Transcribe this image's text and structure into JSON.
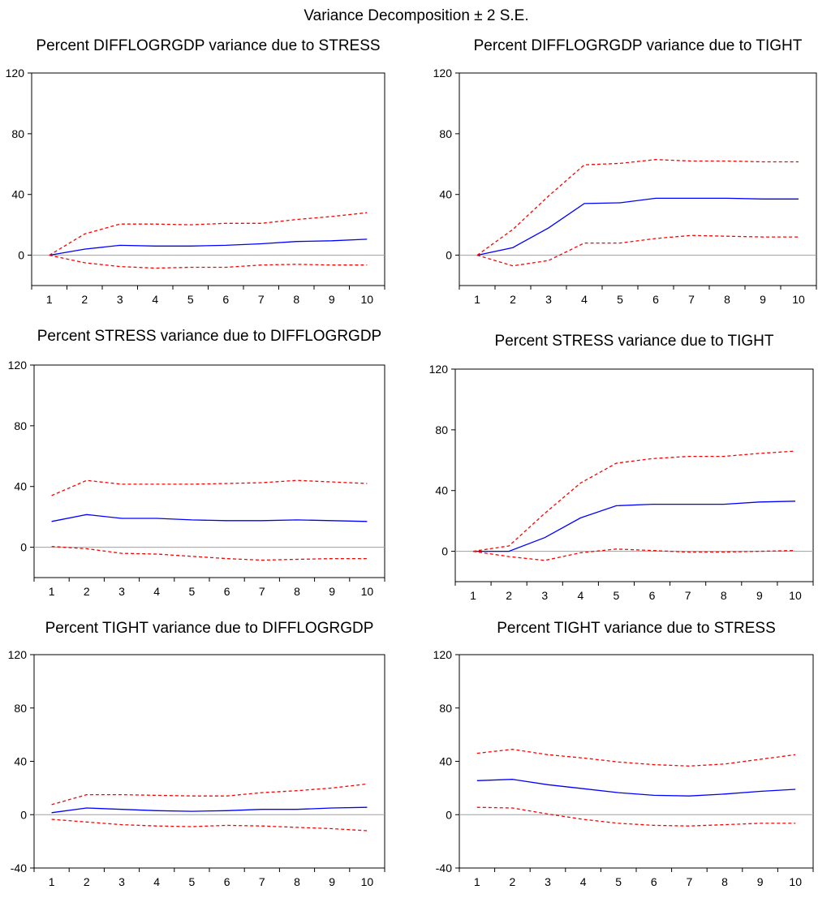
{
  "figure": {
    "title": "Variance Decomposition ± 2 S.E."
  },
  "colors": {
    "estimate": "#0000ff",
    "bands": "#ff0000",
    "zero": "#a0a0a0",
    "axes": "#000000"
  },
  "chart_data": [
    {
      "type": "line",
      "title": "Percent DIFFLOGRGDP variance due to STRESS",
      "x": [
        1,
        2,
        3,
        4,
        5,
        6,
        7,
        8,
        9,
        10
      ],
      "ylim": [
        -20,
        120
      ],
      "yticks": [
        0,
        40,
        80,
        120
      ],
      "series": [
        {
          "role": "estimate",
          "values": [
            0,
            4,
            6.5,
            6,
            6,
            6.5,
            7.5,
            9,
            9.5,
            10.5
          ]
        },
        {
          "role": "upper",
          "values": [
            0,
            14,
            20.5,
            20.5,
            20,
            21,
            21,
            23.5,
            25.5,
            28
          ]
        },
        {
          "role": "lower",
          "values": [
            0,
            -5,
            -7.5,
            -8.5,
            -8,
            -8,
            -6.5,
            -6,
            -6.5,
            -6.5
          ]
        }
      ]
    },
    {
      "type": "line",
      "title": "Percent DIFFLOGRGDP variance due to TIGHT",
      "x": [
        1,
        2,
        3,
        4,
        5,
        6,
        7,
        8,
        9,
        10
      ],
      "ylim": [
        -20,
        120
      ],
      "yticks": [
        0,
        40,
        80,
        120
      ],
      "series": [
        {
          "role": "estimate",
          "values": [
            0,
            5,
            18,
            34,
            34.5,
            37.5,
            37.5,
            37.5,
            37,
            37
          ]
        },
        {
          "role": "upper",
          "values": [
            0,
            17,
            39,
            59.5,
            60.5,
            63,
            62,
            62,
            61.5,
            61.5
          ]
        },
        {
          "role": "lower",
          "values": [
            0,
            -7,
            -3.5,
            8,
            8,
            11,
            13,
            12.5,
            12,
            12
          ]
        }
      ]
    },
    {
      "type": "line",
      "title": "Percent STRESS variance due to DIFFLOGRGDP",
      "x": [
        1,
        2,
        3,
        4,
        5,
        6,
        7,
        8,
        9,
        10
      ],
      "ylim": [
        -20,
        120
      ],
      "yticks": [
        0,
        40,
        80,
        120
      ],
      "series": [
        {
          "role": "estimate",
          "values": [
            17,
            21.5,
            19,
            19,
            18,
            17.5,
            17.5,
            18,
            17.5,
            17
          ]
        },
        {
          "role": "upper",
          "values": [
            34,
            44,
            41.5,
            41.5,
            41.5,
            42,
            42.5,
            44,
            43,
            42
          ]
        },
        {
          "role": "lower",
          "values": [
            0.5,
            -1,
            -4,
            -4.5,
            -6,
            -7.5,
            -8.5,
            -8,
            -7.5,
            -7.5
          ]
        }
      ]
    },
    {
      "type": "line",
      "title": "Percent STRESS variance due to TIGHT",
      "x": [
        1,
        2,
        3,
        4,
        5,
        6,
        7,
        8,
        9,
        10
      ],
      "ylim": [
        -20,
        120
      ],
      "yticks": [
        0,
        40,
        80,
        120
      ],
      "series": [
        {
          "role": "estimate",
          "values": [
            0,
            0,
            9,
            22,
            30,
            31,
            31,
            31,
            32.5,
            33
          ]
        },
        {
          "role": "upper",
          "values": [
            0,
            3.5,
            25,
            45,
            58,
            61,
            62.5,
            62.5,
            64.5,
            66
          ]
        },
        {
          "role": "lower",
          "values": [
            0,
            -3.5,
            -6,
            -1,
            1.5,
            0.5,
            -0.5,
            -0.5,
            0,
            0.5
          ]
        }
      ]
    },
    {
      "type": "line",
      "title": "Percent TIGHT variance due to DIFFLOGRGDP",
      "x": [
        1,
        2,
        3,
        4,
        5,
        6,
        7,
        8,
        9,
        10
      ],
      "ylim": [
        -40,
        120
      ],
      "yticks": [
        -40,
        0,
        40,
        80,
        120
      ],
      "series": [
        {
          "role": "estimate",
          "values": [
            1.5,
            5,
            4,
            3,
            2.5,
            3,
            4,
            4,
            5,
            5.5
          ]
        },
        {
          "role": "upper",
          "values": [
            7.5,
            15,
            15,
            14.5,
            14,
            14,
            16.5,
            18,
            20,
            23
          ]
        },
        {
          "role": "lower",
          "values": [
            -3.5,
            -5.5,
            -7.5,
            -8.5,
            -9,
            -8,
            -8.5,
            -9.5,
            -10.5,
            -12
          ]
        }
      ]
    },
    {
      "type": "line",
      "title": "Percent TIGHT variance due to STRESS",
      "x": [
        1,
        2,
        3,
        4,
        5,
        6,
        7,
        8,
        9,
        10
      ],
      "ylim": [
        -40,
        120
      ],
      "yticks": [
        -40,
        0,
        40,
        80,
        120
      ],
      "series": [
        {
          "role": "estimate",
          "values": [
            25.5,
            26.5,
            22.5,
            19.5,
            16.5,
            14.5,
            14,
            15.5,
            17.5,
            19
          ]
        },
        {
          "role": "upper",
          "values": [
            46,
            49,
            45,
            42.5,
            39.5,
            37.5,
            36.5,
            38,
            41.5,
            45
          ]
        },
        {
          "role": "lower",
          "values": [
            5.5,
            5,
            0.5,
            -3.5,
            -6.5,
            -8,
            -8.5,
            -7.5,
            -6.5,
            -6.5
          ]
        }
      ]
    }
  ]
}
